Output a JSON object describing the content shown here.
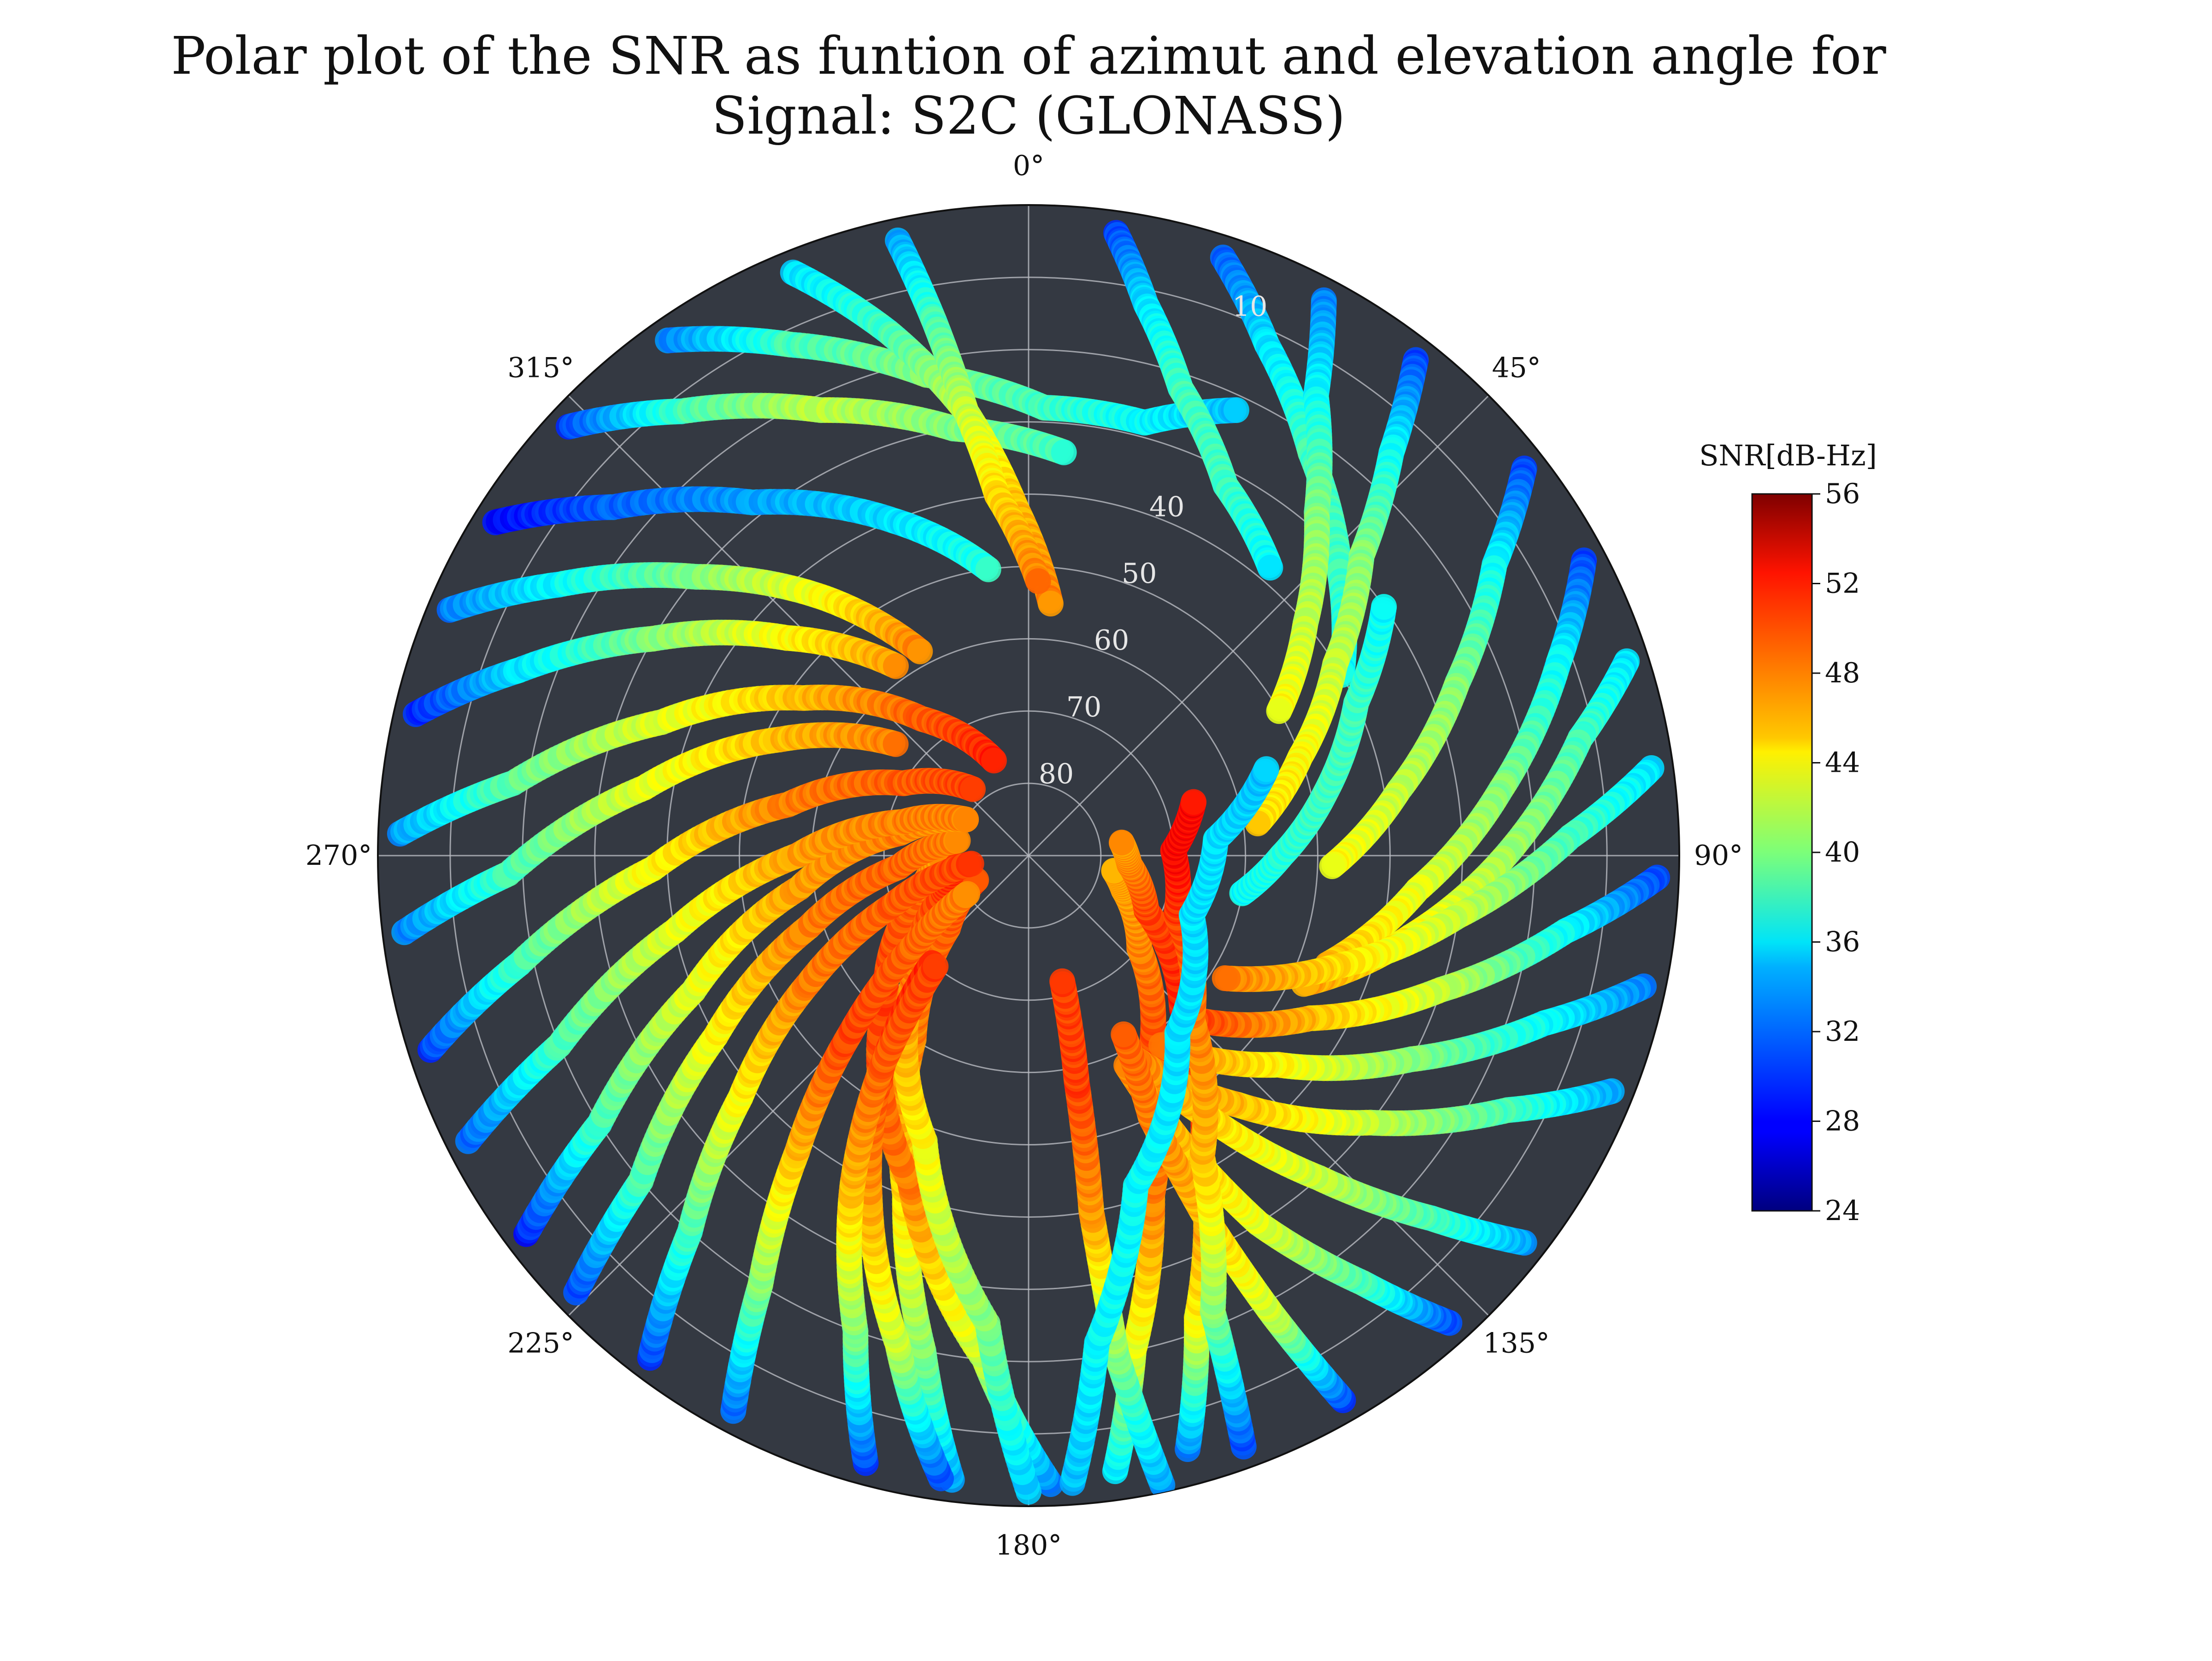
{
  "chart_data": {
    "type": "scatter",
    "projection": "polar",
    "title_lines": [
      "Polar plot of the SNR as funtion of azimut and elevation angle for",
      "Signal: S2C (GLONASS)"
    ],
    "angular_axis": {
      "direction": "clockwise",
      "zero_location": "top",
      "ticks": [
        0,
        45,
        90,
        135,
        180,
        225,
        270,
        315
      ],
      "tick_labels": [
        "0°",
        "45°",
        "90°",
        "135°",
        "180°",
        "225°",
        "270°",
        "315°"
      ]
    },
    "radial_axis": {
      "quantity": "elevation angle",
      "range": [
        0,
        90
      ],
      "inverted": true,
      "ticks": [
        10,
        20,
        30,
        40,
        50,
        60,
        70,
        80
      ],
      "tick_labels": [
        "10",
        "",
        "",
        "40",
        "50",
        "60",
        "70",
        "80"
      ]
    },
    "grid": true,
    "background_color": "#343942",
    "colormap": "jet",
    "colorbar": {
      "label": "SNR[dB-Hz]",
      "range": [
        24,
        56
      ],
      "ticks": [
        24,
        28,
        32,
        36,
        40,
        44,
        48,
        52,
        56
      ],
      "tick_labels": [
        "24",
        "28",
        "32",
        "36",
        "40",
        "44",
        "48",
        "52",
        "56"
      ],
      "placement": "right"
    },
    "series": [
      {
        "az": [
          187,
          192,
          200,
          212,
          228,
          245
        ],
        "el": [
          3,
          20,
          40,
          60,
          75,
          82
        ],
        "snr": [
          33,
          40,
          45,
          48,
          49,
          50
        ]
      },
      {
        "az": [
          178,
          185,
          200,
          225,
          250,
          268
        ],
        "el": [
          3,
          20,
          42,
          62,
          74,
          78
        ],
        "snr": [
          32,
          42,
          48,
          50,
          49,
          47
        ]
      },
      {
        "az": [
          172,
          168,
          160,
          148,
          130,
          110,
          100
        ],
        "el": [
          4,
          20,
          40,
          58,
          70,
          76,
          78
        ],
        "snr": [
          35,
          43,
          48,
          50,
          48,
          47,
          47
        ]
      },
      {
        "az": [
          165,
          160,
          150,
          135,
          115,
          95,
          82
        ],
        "el": [
          5,
          22,
          42,
          60,
          72,
          76,
          77
        ],
        "snr": [
          32,
          44,
          49,
          51,
          50,
          48,
          47
        ]
      },
      {
        "az": [
          180,
          185,
          200,
          222,
          245,
          262
        ],
        "el": [
          2,
          25,
          48,
          66,
          77,
          80
        ],
        "snr": [
          34,
          40,
          44,
          48,
          50,
          51
        ]
      },
      {
        "az": [
          168,
          170,
          170,
          168,
          165
        ],
        "el": [
          1,
          20,
          40,
          58,
          72
        ],
        "snr": [
          33,
          40,
          47,
          50,
          50
        ]
      },
      {
        "az": [
          188,
          195,
          205,
          215,
          222
        ],
        "el": [
          3,
          20,
          38,
          55,
          70
        ],
        "snr": [
          30,
          42,
          47,
          50,
          51
        ]
      },
      {
        "az": [
          195,
          200,
          208,
          215,
          220
        ],
        "el": [
          3,
          20,
          38,
          55,
          70
        ],
        "snr": [
          30,
          40,
          46,
          49,
          50
        ]
      },
      {
        "az": [
          208,
          212,
          218,
          225,
          232,
          238
        ],
        "el": [
          3,
          20,
          38,
          55,
          70,
          80
        ],
        "snr": [
          31,
          40,
          46,
          50,
          49,
          48
        ]
      },
      {
        "az": [
          217,
          222,
          230,
          240,
          250,
          262
        ],
        "el": [
          3,
          20,
          38,
          55,
          70,
          82
        ],
        "snr": [
          30,
          38,
          44,
          48,
          49,
          50
        ]
      },
      {
        "az": [
          226,
          230,
          240,
          252,
          265,
          282
        ],
        "el": [
          3,
          20,
          40,
          58,
          72,
          80
        ],
        "snr": [
          30,
          38,
          44,
          48,
          49,
          48
        ]
      },
      {
        "az": [
          233,
          238,
          248,
          262,
          280,
          300
        ],
        "el": [
          3,
          20,
          40,
          58,
          72,
          80
        ],
        "snr": [
          29,
          38,
          43,
          47,
          48,
          47
        ]
      },
      {
        "az": [
          243,
          248,
          258,
          270,
          285,
          300
        ],
        "el": [
          3,
          20,
          40,
          58,
          72,
          80
        ],
        "snr": [
          31,
          38,
          43,
          47,
          48,
          48
        ]
      },
      {
        "az": [
          252,
          258,
          268,
          282,
          300,
          320
        ],
        "el": [
          3,
          18,
          38,
          56,
          70,
          78
        ],
        "snr": [
          30,
          38,
          44,
          48,
          49,
          50
        ]
      },
      {
        "az": [
          263,
          268,
          280,
          295,
          310
        ],
        "el": [
          3,
          18,
          36,
          52,
          66
        ],
        "snr": [
          32,
          38,
          43,
          46,
          48
        ]
      },
      {
        "az": [
          272,
          278,
          290,
          305,
          322,
          340
        ],
        "el": [
          3,
          18,
          36,
          52,
          66,
          76
        ],
        "snr": [
          33,
          39,
          43,
          46,
          49,
          51
        ]
      },
      {
        "az": [
          283,
          290,
          300,
          312,
          325
        ],
        "el": [
          3,
          15,
          30,
          45,
          58
        ],
        "snr": [
          29,
          35,
          40,
          44,
          47
        ]
      },
      {
        "az": [
          293,
          300,
          310,
          322,
          332
        ],
        "el": [
          3,
          15,
          30,
          45,
          58
        ],
        "snr": [
          32,
          36,
          40,
          44,
          48
        ]
      },
      {
        "az": [
          302,
          310,
          322,
          338,
          352
        ],
        "el": [
          3,
          15,
          28,
          40,
          50
        ],
        "snr": [
          28,
          31,
          33,
          35,
          37
        ]
      },
      {
        "az": [
          313,
          322,
          335,
          350,
          5
        ],
        "el": [
          3,
          12,
          22,
          30,
          34
        ],
        "snr": [
          30,
          38,
          42,
          40,
          38
        ]
      },
      {
        "az": [
          325,
          335,
          348,
          2,
          15,
          25
        ],
        "el": [
          3,
          12,
          22,
          28,
          28,
          22
        ],
        "snr": [
          32,
          38,
          40,
          38,
          36,
          34
        ]
      },
      {
        "az": [
          338,
          345,
          352,
          358,
          5
        ],
        "el": [
          3,
          15,
          28,
          42,
          55
        ],
        "snr": [
          35,
          38,
          42,
          46,
          48
        ]
      },
      {
        "az": [
          348,
          350,
          352,
          355,
          2
        ],
        "el": [
          3,
          15,
          28,
          40,
          52
        ],
        "snr": [
          33,
          38,
          42,
          45,
          48
        ]
      },
      {
        "az": [
          8,
          12,
          18,
          28,
          40
        ],
        "el": [
          3,
          12,
          22,
          32,
          38
        ],
        "snr": [
          30,
          35,
          38,
          38,
          36
        ]
      },
      {
        "az": [
          18,
          25,
          35,
          48,
          60
        ],
        "el": [
          3,
          12,
          22,
          32,
          40
        ],
        "snr": [
          31,
          35,
          38,
          38,
          36
        ]
      },
      {
        "az": [
          28,
          32,
          40,
          50,
          60
        ],
        "el": [
          3,
          15,
          28,
          40,
          50
        ],
        "snr": [
          32,
          36,
          40,
          42,
          44
        ]
      },
      {
        "az": [
          38,
          42,
          48,
          58,
          70,
          82
        ],
        "el": [
          3,
          15,
          28,
          40,
          50,
          58
        ],
        "snr": [
          30,
          36,
          40,
          42,
          44,
          45
        ]
      },
      {
        "az": [
          52,
          58,
          68,
          80,
          92
        ],
        "el": [
          3,
          14,
          26,
          38,
          48
        ],
        "snr": [
          30,
          36,
          40,
          42,
          44
        ]
      },
      {
        "az": [
          62,
          70,
          82,
          95,
          110
        ],
        "el": [
          3,
          12,
          24,
          36,
          46
        ],
        "snr": [
          30,
          36,
          40,
          43,
          46
        ]
      },
      {
        "az": [
          72,
          78,
          90,
          102,
          115
        ],
        "el": [
          3,
          12,
          24,
          36,
          48
        ],
        "snr": [
          35,
          38,
          41,
          44,
          47
        ]
      },
      {
        "az": [
          82,
          88,
          98,
          110,
          122
        ],
        "el": [
          3,
          15,
          30,
          45,
          58
        ],
        "snr": [
          35,
          38,
          42,
          45,
          48
        ]
      },
      {
        "az": [
          92,
          98,
          108,
          120,
          135
        ],
        "el": [
          3,
          15,
          30,
          45,
          58
        ],
        "snr": [
          30,
          36,
          42,
          46,
          50
        ]
      },
      {
        "az": [
          102,
          108,
          118,
          130,
          145
        ],
        "el": [
          3,
          15,
          30,
          45,
          58
        ],
        "snr": [
          32,
          36,
          40,
          44,
          48
        ]
      },
      {
        "az": [
          112,
          118,
          128,
          140,
          152
        ],
        "el": [
          3,
          15,
          30,
          45,
          58
        ],
        "snr": [
          33,
          38,
          42,
          46,
          48
        ]
      },
      {
        "az": [
          128,
          132,
          138,
          145,
          152
        ],
        "el": [
          3,
          15,
          30,
          45,
          58
        ],
        "snr": [
          33,
          38,
          42,
          45,
          48
        ]
      },
      {
        "az": [
          138,
          142,
          148,
          152,
          155
        ],
        "el": [
          3,
          15,
          30,
          45,
          58
        ],
        "snr": [
          30,
          38,
          43,
          46,
          48
        ]
      },
      {
        "az": [
          150,
          152,
          154,
          155,
          152
        ],
        "el": [
          3,
          18,
          35,
          50,
          62
        ],
        "snr": [
          30,
          42,
          46,
          48,
          49
        ]
      },
      {
        "az": [
          160,
          158,
          150,
          135,
          112,
          88,
          72
        ],
        "el": [
          3,
          22,
          42,
          58,
          68,
          70,
          66
        ],
        "snr": [
          30,
          40,
          46,
          48,
          50,
          52,
          52
        ]
      },
      {
        "az": [
          176,
          172,
          162,
          140,
          110,
          85,
          70
        ],
        "el": [
          3,
          22,
          42,
          58,
          66,
          64,
          55
        ],
        "snr": [
          34,
          36,
          36,
          35,
          35,
          35,
          34
        ]
      },
      {
        "az": [
          100,
          90,
          78,
          65,
          55
        ],
        "el": [
          60,
          55,
          48,
          40,
          30
        ],
        "snr": [
          36,
          37,
          38,
          38,
          36
        ]
      }
    ]
  }
}
